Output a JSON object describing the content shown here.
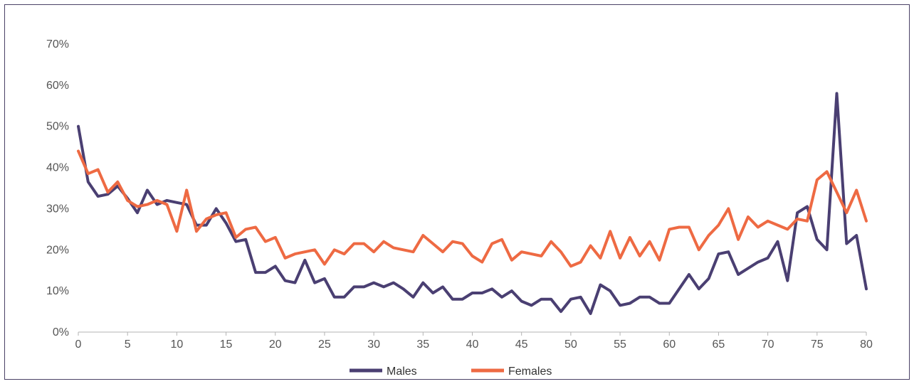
{
  "chart_data": {
    "type": "line",
    "title": "",
    "xlabel": "",
    "ylabel": "",
    "xlim": [
      0,
      80
    ],
    "ylim": [
      0,
      70
    ],
    "x_ticks": [
      0,
      5,
      10,
      15,
      20,
      25,
      30,
      35,
      40,
      45,
      50,
      55,
      60,
      65,
      70,
      75,
      80
    ],
    "x_tick_labels": [
      "0",
      "5",
      "10",
      "15",
      "20",
      "25",
      "30",
      "35",
      "40",
      "45",
      "50",
      "55",
      "60",
      "65",
      "70",
      "75",
      "80"
    ],
    "y_ticks": [
      0,
      10,
      20,
      30,
      40,
      50,
      60,
      70
    ],
    "y_tick_labels": [
      "0%",
      "10%",
      "20%",
      "30%",
      "40%",
      "50%",
      "60%",
      "70%"
    ],
    "grid": false,
    "legend_position": "bottom-center",
    "x": [
      0,
      1,
      2,
      3,
      4,
      5,
      6,
      7,
      8,
      9,
      10,
      11,
      12,
      13,
      14,
      15,
      16,
      17,
      18,
      19,
      20,
      21,
      22,
      23,
      24,
      25,
      26,
      27,
      28,
      29,
      30,
      31,
      32,
      33,
      34,
      35,
      36,
      37,
      38,
      39,
      40,
      41,
      42,
      43,
      44,
      45,
      46,
      47,
      48,
      49,
      50,
      51,
      52,
      53,
      54,
      55,
      56,
      57,
      58,
      59,
      60,
      61,
      62,
      63,
      64,
      65,
      66,
      67,
      68,
      69,
      70,
      71,
      72,
      73,
      74,
      75,
      76,
      77,
      78,
      79,
      80
    ],
    "series": [
      {
        "name": "Males",
        "color": "#4a3f72",
        "values": [
          50,
          36.5,
          33,
          33.5,
          35.5,
          32.5,
          29,
          34.5,
          31,
          32,
          31.5,
          31,
          26,
          26,
          30,
          26.5,
          22,
          22.5,
          14.5,
          14.5,
          16,
          12.5,
          12,
          17.5,
          12,
          13,
          8.5,
          8.5,
          11,
          11,
          12,
          11,
          12,
          10.5,
          8.5,
          12,
          9.5,
          11,
          8,
          8,
          9.5,
          9.5,
          10.5,
          8.5,
          10,
          7.5,
          6.5,
          8,
          8,
          5,
          8,
          8.5,
          4.5,
          11.5,
          10,
          6.5,
          7,
          8.5,
          8.5,
          7,
          7,
          10.5,
          14,
          10.5,
          13,
          19,
          19.5,
          14,
          15.5,
          17,
          18,
          22,
          12.5,
          29,
          30.5,
          22.5,
          20,
          58,
          21.5,
          23.5,
          10.5
        ]
      },
      {
        "name": "Females",
        "color": "#ee6a43",
        "values": [
          44,
          38.5,
          39.5,
          34,
          36.5,
          32,
          30.5,
          31,
          32,
          31,
          24.5,
          34.5,
          24.5,
          27.5,
          28.5,
          29,
          23,
          25,
          25.5,
          22,
          23,
          18,
          19,
          19.5,
          20,
          16.5,
          20,
          19,
          21.5,
          21.5,
          19.5,
          22,
          20.5,
          20,
          19.5,
          23.5,
          21.5,
          19.5,
          22,
          21.5,
          18.5,
          17,
          21.5,
          22.5,
          17.5,
          19.5,
          19,
          18.5,
          22,
          19.5,
          16,
          17,
          21,
          18,
          24.5,
          18,
          23,
          18.5,
          22,
          17.5,
          25,
          25.5,
          25.5,
          20,
          23.5,
          26,
          30,
          22.5,
          28,
          25.5,
          27,
          26,
          25,
          27.5,
          27,
          37,
          39,
          34,
          29,
          34.5,
          27
        ]
      }
    ]
  }
}
